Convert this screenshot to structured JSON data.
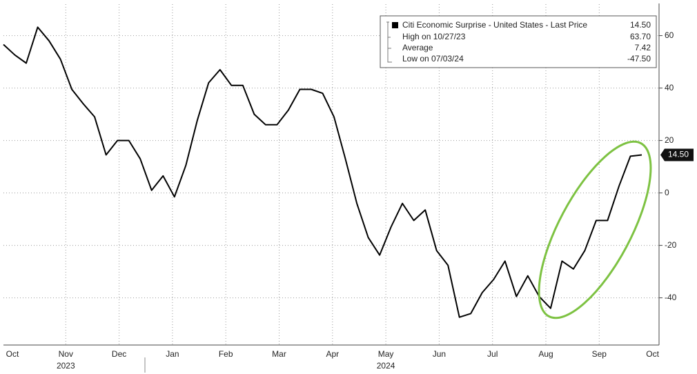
{
  "chart_data": {
    "type": "line",
    "legend": {
      "title": "Citi Economic Surprise - United States - Last Price",
      "title_value": 14.5,
      "title_value_label": "14.50",
      "stats": [
        {
          "label": "High on 10/27/23",
          "value": 63.7,
          "value_label": "63.70"
        },
        {
          "label": "Average",
          "value": 7.42
        },
        {
          "label": "Low on 07/03/24",
          "value": -47.5,
          "value_label": "-47.50"
        }
      ]
    },
    "last_price": 14.5,
    "last_price_label": "14.50",
    "x_labels": [
      "Oct",
      "Nov",
      "Dec",
      "Jan",
      "Feb",
      "Mar",
      "Apr",
      "May",
      "Jun",
      "Jul",
      "Aug",
      "Sep",
      "Oct"
    ],
    "years": [
      "2023",
      "2024"
    ],
    "color": "#000000",
    "values": [
      56.6,
      52.6,
      49.5,
      63.2,
      58,
      51,
      39.5,
      34,
      29,
      14.5,
      20,
      20,
      13,
      1,
      6.5,
      -1.5,
      10.5,
      27.6,
      42,
      47,
      41,
      41,
      30,
      26,
      26,
      31.6,
      39.5,
      39.5,
      38,
      29,
      13,
      -4,
      -17,
      -23.7,
      -13,
      -4,
      -10.5,
      -6.5,
      -22,
      -27.6,
      -47.4,
      -46,
      -38,
      -33,
      -26,
      -39.5,
      -31.6,
      -39.5,
      -44,
      -26,
      -29,
      -22,
      -10.5,
      -10.5,
      2.6,
      14,
      14.5
    ],
    "ylim": [
      -58,
      72
    ],
    "yticks": [
      -40,
      -20,
      0,
      20,
      40,
      60
    ],
    "grid": true,
    "highlight_color": "#7dc242"
  }
}
